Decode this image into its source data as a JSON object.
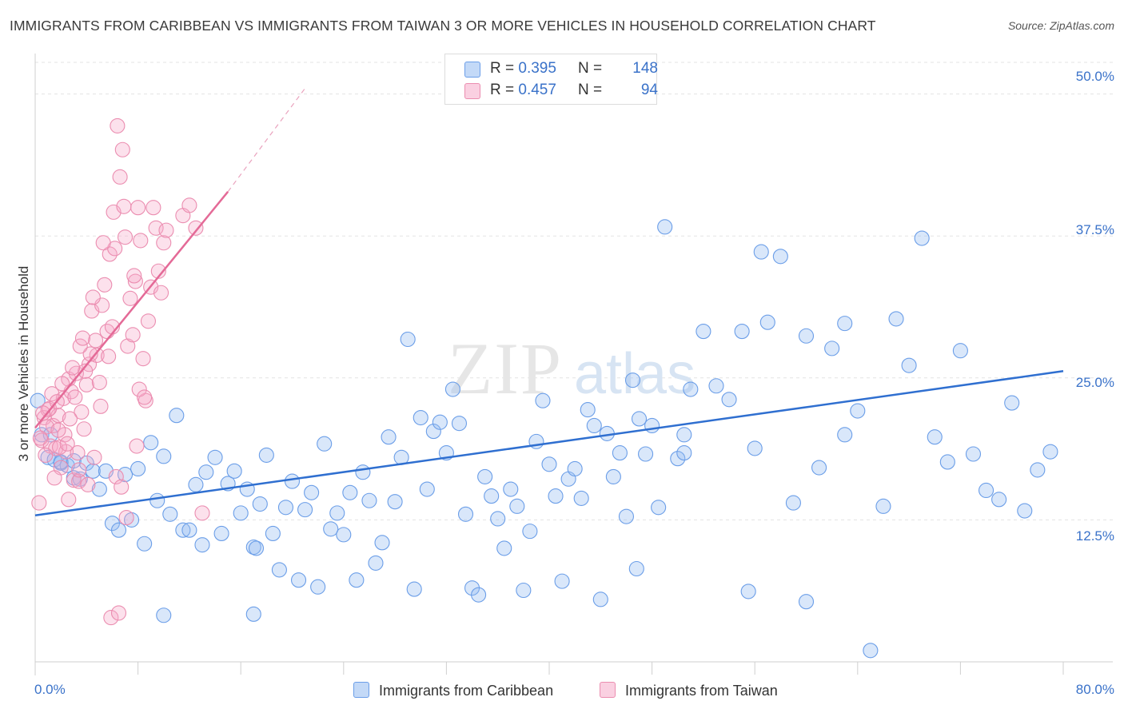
{
  "title": "IMMIGRANTS FROM CARIBBEAN VS IMMIGRANTS FROM TAIWAN 3 OR MORE VEHICLES IN HOUSEHOLD CORRELATION CHART",
  "source": "Source: ZipAtlas.com",
  "watermark": "ZIPatlas",
  "legend_top": [
    {
      "r_label": "R = ",
      "r_value": "0.395",
      "n_label": "N = ",
      "n_value": "148"
    },
    {
      "r_label": "R = ",
      "r_value": "0.457",
      "n_label": "N = ",
      "n_value": "94"
    }
  ],
  "chart_data": {
    "type": "scatter",
    "title": "IMMIGRANTS FROM CARIBBEAN VS IMMIGRANTS FROM TAIWAN 3 OR MORE VEHICLES IN HOUSEHOLD CORRELATION CHART",
    "xlabel": "",
    "ylabel": "3 or more Vehicles in Household",
    "xlim": [
      0,
      80
    ],
    "ylim": [
      0,
      53
    ],
    "x_tick_labels": [
      "0.0%",
      "80.0%"
    ],
    "y_ticks": [
      12.5,
      25.0,
      37.5,
      50.0
    ],
    "y_tick_labels": [
      "12.5%",
      "25.0%",
      "37.5%",
      "50.0%"
    ],
    "grid": "horizontal dashed",
    "series": [
      {
        "name": "Immigrants from Caribbean",
        "color": "#6b9ee8",
        "fill": "rgba(145,185,240,0.35)",
        "r": 0.395,
        "n": 148,
        "trend": {
          "x0": 0,
          "y0": 12.9,
          "x1": 80,
          "y1": 25.6
        },
        "points": [
          [
            0.2,
            23
          ],
          [
            0.5,
            20
          ],
          [
            1,
            18
          ],
          [
            1.5,
            17.8
          ],
          [
            2,
            17.5
          ],
          [
            2.5,
            17.3
          ],
          [
            3,
            16.2
          ],
          [
            3.5,
            16.1
          ],
          [
            4,
            17.5
          ],
          [
            1.2,
            20
          ],
          [
            2,
            17.6
          ],
          [
            3,
            17.7
          ],
          [
            4.5,
            16.8
          ],
          [
            5,
            15.2
          ],
          [
            5.5,
            16.8
          ],
          [
            6,
            12.2
          ],
          [
            6.5,
            11.6
          ],
          [
            7,
            16.5
          ],
          [
            7.5,
            12.5
          ],
          [
            8,
            17
          ],
          [
            8.5,
            10.4
          ],
          [
            9,
            19.3
          ],
          [
            9.5,
            14.2
          ],
          [
            10,
            18.1
          ],
          [
            10.5,
            13
          ],
          [
            11,
            21.7
          ],
          [
            11.5,
            11.6
          ],
          [
            12,
            11.6
          ],
          [
            12.5,
            15.6
          ],
          [
            13,
            10.3
          ],
          [
            13.3,
            16.7
          ],
          [
            14,
            18
          ],
          [
            14.5,
            11.3
          ],
          [
            15,
            15.7
          ],
          [
            15.5,
            16.8
          ],
          [
            16,
            13.1
          ],
          [
            16.5,
            15.2
          ],
          [
            17,
            10.1
          ],
          [
            17.5,
            13.9
          ],
          [
            18,
            18.2
          ],
          [
            18.5,
            11.3
          ],
          [
            19,
            8.1
          ],
          [
            19.5,
            13.6
          ],
          [
            20,
            15.9
          ],
          [
            20.5,
            7.2
          ],
          [
            21,
            13.4
          ],
          [
            21.5,
            14.9
          ],
          [
            22,
            6.6
          ],
          [
            22.5,
            19.2
          ],
          [
            23,
            11.7
          ],
          [
            23.5,
            13.1
          ],
          [
            24,
            11.2
          ],
          [
            24.5,
            14.9
          ],
          [
            25,
            7.2
          ],
          [
            25.5,
            16.7
          ],
          [
            26,
            14.2
          ],
          [
            26.5,
            8.7
          ],
          [
            27,
            10.5
          ],
          [
            27.5,
            19.8
          ],
          [
            28,
            14.1
          ],
          [
            28.5,
            18
          ],
          [
            29,
            28.4
          ],
          [
            29.5,
            6.4
          ],
          [
            30,
            21.5
          ],
          [
            30.5,
            15.2
          ],
          [
            31,
            20.3
          ],
          [
            31.5,
            21.1
          ],
          [
            32,
            18.4
          ],
          [
            32.5,
            24
          ],
          [
            33,
            21
          ],
          [
            33.5,
            13
          ],
          [
            34,
            6.5
          ],
          [
            34.5,
            5.9
          ],
          [
            35,
            16.3
          ],
          [
            35.5,
            14.6
          ],
          [
            36,
            12.6
          ],
          [
            36.5,
            10
          ],
          [
            37,
            15.2
          ],
          [
            37.5,
            13.7
          ],
          [
            38,
            6.3
          ],
          [
            38.5,
            11.5
          ],
          [
            39,
            19.4
          ],
          [
            39.5,
            23
          ],
          [
            40,
            17.4
          ],
          [
            40.5,
            14.6
          ],
          [
            41,
            7.1
          ],
          [
            41.5,
            16.1
          ],
          [
            42,
            17
          ],
          [
            42.5,
            14.4
          ],
          [
            43,
            22.2
          ],
          [
            43.5,
            20.8
          ],
          [
            44,
            5.5
          ],
          [
            44.5,
            20.1
          ],
          [
            45,
            16.3
          ],
          [
            45.5,
            18.4
          ],
          [
            46,
            12.8
          ],
          [
            46.5,
            24.8
          ],
          [
            47,
            21.4
          ],
          [
            47.5,
            18.3
          ],
          [
            48,
            20.8
          ],
          [
            48.5,
            13.6
          ],
          [
            49,
            38.3
          ],
          [
            50,
            17.9
          ],
          [
            50.5,
            20
          ],
          [
            51,
            24
          ],
          [
            52,
            29.1
          ],
          [
            53,
            24.3
          ],
          [
            54,
            23.1
          ],
          [
            55,
            29.1
          ],
          [
            56,
            18.8
          ],
          [
            56.5,
            36.1
          ],
          [
            57,
            29.9
          ],
          [
            58,
            35.7
          ],
          [
            59,
            14
          ],
          [
            60,
            28.7
          ],
          [
            61,
            17.1
          ],
          [
            62,
            27.6
          ],
          [
            63,
            20
          ],
          [
            64,
            22.1
          ],
          [
            65,
            1
          ],
          [
            66,
            13.7
          ],
          [
            67,
            30.2
          ],
          [
            68,
            26.1
          ],
          [
            69,
            37.3
          ],
          [
            70,
            19.8
          ],
          [
            71,
            17.6
          ],
          [
            72,
            27.4
          ],
          [
            73,
            18.3
          ],
          [
            74,
            15.1
          ],
          [
            75,
            14.3
          ],
          [
            76,
            22.8
          ],
          [
            77,
            13.3
          ],
          [
            78,
            16.9
          ],
          [
            79,
            18.5
          ],
          [
            17.2,
            10
          ],
          [
            17,
            4.2
          ],
          [
            10,
            4.1
          ],
          [
            55.5,
            6.2
          ],
          [
            60,
            5.3
          ],
          [
            63,
            29.8
          ],
          [
            50.5,
            18.4
          ],
          [
            46.8,
            8.2
          ]
        ]
      },
      {
        "name": "Immigrants from Taiwan",
        "color": "#eb8db0",
        "fill": "rgba(245,170,200,0.35)",
        "r": 0.457,
        "n": 94,
        "trend": {
          "x0": 0,
          "y0": 20.6,
          "x1": 15,
          "y1": 41.4,
          "dash_to_x": 21,
          "dash_to_y": 50.5
        },
        "points": [
          [
            0.3,
            14
          ],
          [
            0.5,
            19.5
          ],
          [
            0.7,
            21.5
          ],
          [
            1,
            22.2
          ],
          [
            1.2,
            19
          ],
          [
            1.4,
            20.8
          ],
          [
            1.6,
            18.8
          ],
          [
            1.8,
            21.7
          ],
          [
            2,
            17.1
          ],
          [
            2.2,
            23.2
          ],
          [
            2.4,
            18.5
          ],
          [
            2.6,
            24.9
          ],
          [
            2.8,
            23.8
          ],
          [
            3,
            16
          ],
          [
            3.2,
            25.4
          ],
          [
            3.4,
            15.9
          ],
          [
            3.6,
            22
          ],
          [
            3.8,
            20.5
          ],
          [
            4,
            24.4
          ],
          [
            4.2,
            26.2
          ],
          [
            4.4,
            30.9
          ],
          [
            4.6,
            18
          ],
          [
            4.8,
            27
          ],
          [
            5,
            24.6
          ],
          [
            5.2,
            31.4
          ],
          [
            5.4,
            33.2
          ],
          [
            5.6,
            29.1
          ],
          [
            5.8,
            35.9
          ],
          [
            6,
            29.5
          ],
          [
            6.2,
            36.4
          ],
          [
            6.4,
            47.2
          ],
          [
            6.6,
            42.7
          ],
          [
            6.8,
            45.1
          ],
          [
            7,
            37.4
          ],
          [
            7.2,
            27.8
          ],
          [
            7.4,
            32
          ],
          [
            7.6,
            28.8
          ],
          [
            7.8,
            33.5
          ],
          [
            8,
            40
          ],
          [
            8.2,
            37.1
          ],
          [
            8.4,
            26.7
          ],
          [
            8.6,
            23
          ],
          [
            8.8,
            30
          ],
          [
            9,
            33
          ],
          [
            9.2,
            40
          ],
          [
            9.4,
            38.2
          ],
          [
            9.6,
            34.4
          ],
          [
            9.8,
            32.5
          ],
          [
            10,
            36.9
          ],
          [
            10.2,
            38
          ],
          [
            11.5,
            39.3
          ],
          [
            12,
            40.2
          ],
          [
            12.5,
            38.2
          ],
          [
            13,
            13.1
          ],
          [
            7.9,
            19
          ],
          [
            8.1,
            24
          ],
          [
            5.1,
            22.5
          ],
          [
            4.7,
            28.3
          ],
          [
            4.3,
            27.1
          ],
          [
            3.9,
            25.6
          ],
          [
            3.5,
            27.8
          ],
          [
            3.1,
            23.3
          ],
          [
            2.7,
            21.4
          ],
          [
            2.3,
            20
          ],
          [
            1.9,
            18.9
          ],
          [
            1.5,
            16.2
          ],
          [
            1.1,
            22.3
          ],
          [
            0.9,
            20.7
          ],
          [
            0.6,
            21.9
          ],
          [
            0.4,
            19.7
          ],
          [
            1.3,
            23.6
          ],
          [
            2.1,
            24.5
          ],
          [
            2.9,
            25.9
          ],
          [
            3.7,
            28.5
          ],
          [
            4.5,
            32.1
          ],
          [
            5.3,
            36.9
          ],
          [
            6.1,
            39.6
          ],
          [
            6.9,
            40.1
          ],
          [
            7.7,
            34
          ],
          [
            8.5,
            23.3
          ],
          [
            3.3,
            18.4
          ],
          [
            2.5,
            19.2
          ],
          [
            1.7,
            22.9
          ],
          [
            5.7,
            26.9
          ],
          [
            6.3,
            16.3
          ],
          [
            6.7,
            15.4
          ],
          [
            7.1,
            12.7
          ],
          [
            5.9,
            3.9
          ],
          [
            6.5,
            4.3
          ],
          [
            1.8,
            20.4
          ],
          [
            2.6,
            14.3
          ],
          [
            3.4,
            16.9
          ],
          [
            4.1,
            15.6
          ],
          [
            0.8,
            18.2
          ]
        ]
      }
    ]
  },
  "y_tick_labels_text": [
    "50.0%",
    "37.5%",
    "25.0%",
    "12.5%"
  ],
  "x_tick_left": "0.0%",
  "x_tick_right": "80.0%",
  "legend_bottom": [
    {
      "label": "Immigrants from Caribbean",
      "color": "#6b9ee8"
    },
    {
      "label": "Immigrants from Taiwan",
      "color": "#eb8db0"
    }
  ]
}
